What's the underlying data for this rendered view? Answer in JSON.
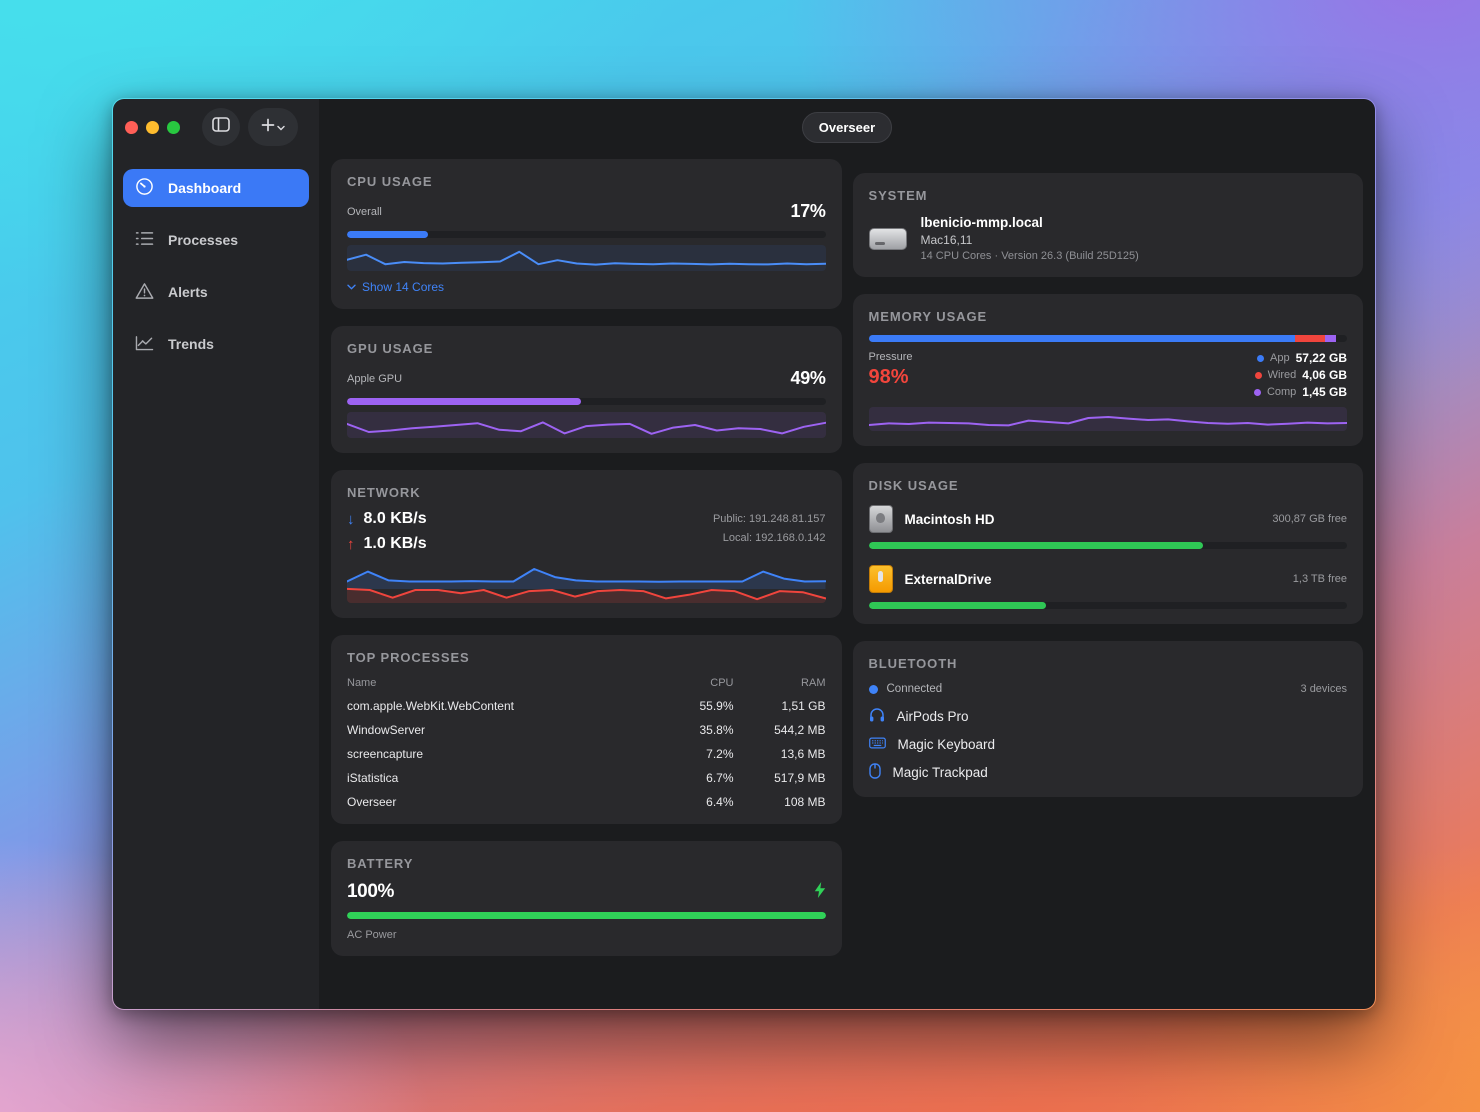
{
  "window": {
    "title": "Overseer"
  },
  "sidebar": {
    "items": [
      {
        "label": "Dashboard"
      },
      {
        "label": "Processes"
      },
      {
        "label": "Alerts"
      },
      {
        "label": "Trends"
      }
    ]
  },
  "cpu": {
    "title": "CPU USAGE",
    "label": "Overall",
    "value": "17%",
    "percent": 17,
    "link": "Show 14 Cores",
    "accent": "#3b7bf7",
    "spark": [
      42,
      65,
      22,
      32,
      27,
      25,
      28,
      31,
      34,
      78,
      22,
      40,
      25,
      20,
      26,
      23,
      22,
      25,
      23,
      21,
      24,
      22,
      21,
      25,
      22,
      24
    ]
  },
  "gpu": {
    "title": "GPU USAGE",
    "label": "Apple GPU",
    "value": "49%",
    "percent": 49,
    "accent": "#9d63f2",
    "spark": [
      55,
      18,
      25,
      35,
      42,
      50,
      58,
      28,
      22,
      62,
      12,
      45,
      52,
      55,
      10,
      38,
      50,
      25,
      35,
      32,
      12,
      42,
      60
    ]
  },
  "network": {
    "title": "NETWORK",
    "down": "8.0 KB/s",
    "up": "1.0 KB/s",
    "public_ip": "Public: 191.248.81.157",
    "local_ip": "Local: 192.168.0.142",
    "down_spark": [
      25,
      70,
      30,
      25,
      25,
      25,
      27,
      25,
      25,
      82,
      45,
      30,
      25,
      25,
      25,
      24,
      25,
      25,
      25,
      25,
      70,
      38,
      25,
      26
    ],
    "up_spark": [
      55,
      50,
      15,
      50,
      50,
      35,
      50,
      15,
      45,
      50,
      20,
      45,
      50,
      45,
      12,
      28,
      50,
      45,
      8,
      45,
      40,
      12
    ]
  },
  "processes": {
    "title": "TOP PROCESSES",
    "columns": [
      "Name",
      "CPU",
      "RAM"
    ],
    "rows": [
      [
        "com.apple.WebKit.WebContent",
        "55.9%",
        "1,51 GB"
      ],
      [
        "WindowServer",
        "35.8%",
        "544,2 MB"
      ],
      [
        "screencapture",
        "7.2%",
        "13,6 MB"
      ],
      [
        "iStatistica",
        "6.7%",
        "517,9 MB"
      ],
      [
        "Overseer",
        "6.4%",
        "108 MB"
      ]
    ]
  },
  "battery": {
    "title": "BATTERY",
    "value": "100%",
    "percent": 100,
    "status": "AC Power",
    "accent": "#30d158"
  },
  "system": {
    "title": "SYSTEM",
    "hostname": "lbenicio-mmp.local",
    "model": "Mac16,11",
    "details": "14 CPU Cores · Version 26.3 (Build 25D125)"
  },
  "memory": {
    "title": "MEMORY USAGE",
    "pressure_label": "Pressure",
    "pressure": "98%",
    "segments": [
      {
        "name": "App",
        "value": "57,22 GB",
        "percent": 89.2,
        "color": "#3b7bf7"
      },
      {
        "name": "Wired",
        "value": "4,06 GB",
        "percent": 6.3,
        "color": "#f0453d"
      },
      {
        "name": "Comp",
        "value": "1,45 GB",
        "percent": 2.3,
        "color": "#9d63f2"
      }
    ],
    "accent": "#9d63f2",
    "spark": [
      20,
      28,
      25,
      32,
      30,
      28,
      20,
      18,
      42,
      35,
      28,
      55,
      60,
      52,
      45,
      48,
      38,
      30,
      26,
      30,
      22,
      26,
      32,
      28,
      30
    ]
  },
  "disks": {
    "title": "DISK USAGE",
    "items": [
      {
        "name": "Macintosh HD",
        "free": "300,87 GB free",
        "percent": 70
      },
      {
        "name": "ExternalDrive",
        "free": "1,3 TB free",
        "percent": 37
      }
    ],
    "accent": "#2fc755"
  },
  "bluetooth": {
    "title": "BLUETOOTH",
    "status": "Connected",
    "count": "3 devices",
    "devices": [
      {
        "name": "AirPods Pro",
        "icon": "headphones-icon"
      },
      {
        "name": "Magic Keyboard",
        "icon": "keyboard-icon"
      },
      {
        "name": "Magic Trackpad",
        "icon": "trackpad-icon"
      }
    ]
  }
}
